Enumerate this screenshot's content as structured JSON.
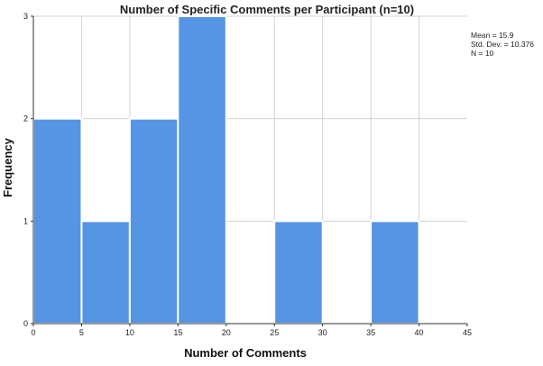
{
  "chart_data": {
    "type": "bar",
    "title": "Number of Specific Comments  per Participant (n=10)",
    "xlabel": "Number of Comments",
    "ylabel": "Frequency",
    "xlim": [
      0,
      45
    ],
    "ylim": [
      0,
      3
    ],
    "x_ticks": [
      "0",
      "5",
      "10",
      "15",
      "20",
      "25",
      "30",
      "35",
      "40",
      "45"
    ],
    "y_ticks": [
      "0",
      "1",
      "2",
      "3"
    ],
    "bins": [
      {
        "start": 0,
        "end": 5,
        "value": 2
      },
      {
        "start": 5,
        "end": 10,
        "value": 1
      },
      {
        "start": 10,
        "end": 15,
        "value": 2
      },
      {
        "start": 15,
        "end": 20,
        "value": 3
      },
      {
        "start": 20,
        "end": 25,
        "value": 0
      },
      {
        "start": 25,
        "end": 30,
        "value": 1
      },
      {
        "start": 30,
        "end": 35,
        "value": 0
      },
      {
        "start": 35,
        "end": 40,
        "value": 1
      },
      {
        "start": 40,
        "end": 45,
        "value": 0
      }
    ],
    "grid": true,
    "stats": [
      "Mean = 15.9",
      "Std. Dev. = 10.376",
      "N = 10"
    ],
    "bar_color": "#5694e4",
    "background": "#ffffff"
  }
}
